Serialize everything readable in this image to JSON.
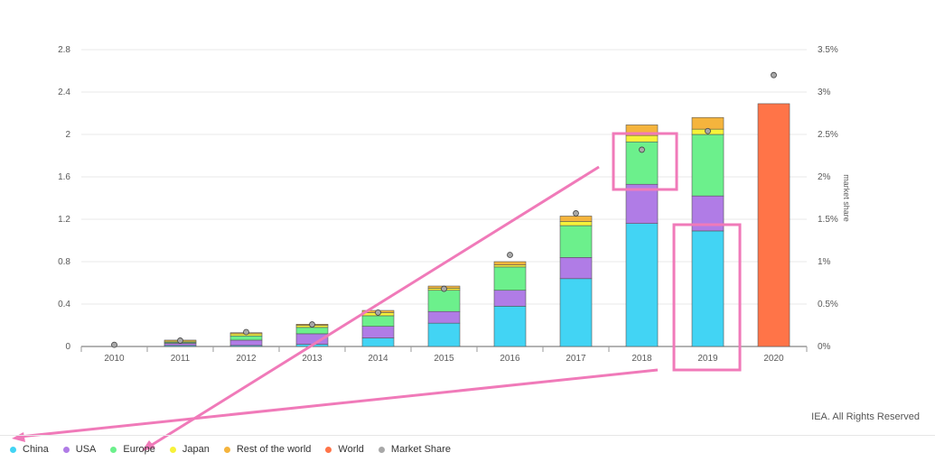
{
  "credit": "IEA. All Rights Reserved",
  "legend": [
    {
      "label": "China",
      "color": "#42d4f4"
    },
    {
      "label": "USA",
      "color": "#b07ce6"
    },
    {
      "label": "Europe",
      "color": "#6cf08c"
    },
    {
      "label": "Japan",
      "color": "#f7f23a"
    },
    {
      "label": "Rest of the world",
      "color": "#f5b43d"
    },
    {
      "label": "World",
      "color": "#ff7448"
    },
    {
      "label": "Market Share",
      "color": "#a8a8a8"
    }
  ],
  "chart_data": {
    "type": "bar",
    "stacked": true,
    "categories": [
      "2010",
      "2011",
      "2012",
      "2013",
      "2014",
      "2015",
      "2016",
      "2017",
      "2018",
      "2019",
      "2020"
    ],
    "series": [
      {
        "name": "China",
        "color": "#42d4f4",
        "values": [
          0.0,
          0.01,
          0.01,
          0.02,
          0.08,
          0.22,
          0.38,
          0.64,
          1.16,
          1.09,
          0
        ]
      },
      {
        "name": "USA",
        "color": "#b07ce6",
        "values": [
          0.0,
          0.02,
          0.05,
          0.1,
          0.11,
          0.11,
          0.15,
          0.2,
          0.37,
          0.33,
          0
        ]
      },
      {
        "name": "Europe",
        "color": "#6cf08c",
        "values": [
          0.0,
          0.01,
          0.04,
          0.06,
          0.1,
          0.2,
          0.22,
          0.3,
          0.4,
          0.58,
          0
        ]
      },
      {
        "name": "Japan",
        "color": "#f7f23a",
        "values": [
          0.0,
          0.01,
          0.02,
          0.02,
          0.03,
          0.02,
          0.02,
          0.04,
          0.06,
          0.05,
          0
        ]
      },
      {
        "name": "Rest of the world",
        "color": "#f5b43d",
        "values": [
          0.0,
          0.01,
          0.01,
          0.01,
          0.02,
          0.02,
          0.03,
          0.05,
          0.1,
          0.11,
          0
        ]
      },
      {
        "name": "World",
        "color": "#ff7448",
        "values": [
          0,
          0,
          0,
          0,
          0,
          0,
          0,
          0,
          0,
          0,
          2.29
        ]
      }
    ],
    "market_share": {
      "name": "Market Share",
      "color": "#a8a8a8",
      "values": [
        0.02,
        0.07,
        0.17,
        0.26,
        0.4,
        0.68,
        1.08,
        1.57,
        2.32,
        2.54,
        3.2
      ]
    },
    "y_left": {
      "ticks": [
        "0",
        "0.4",
        "0.8",
        "1.2",
        "1.6",
        "2",
        "2.4",
        "2.8"
      ],
      "ylim": [
        0,
        2.8
      ]
    },
    "y_right": {
      "label": "market share",
      "ticks": [
        "0%",
        "0.5%",
        "1%",
        "1.5%",
        "2%",
        "2.5%",
        "3%",
        "3.5%"
      ],
      "ylim": [
        0,
        3.5
      ]
    },
    "grid": true,
    "legend_position": "bottom-left"
  }
}
